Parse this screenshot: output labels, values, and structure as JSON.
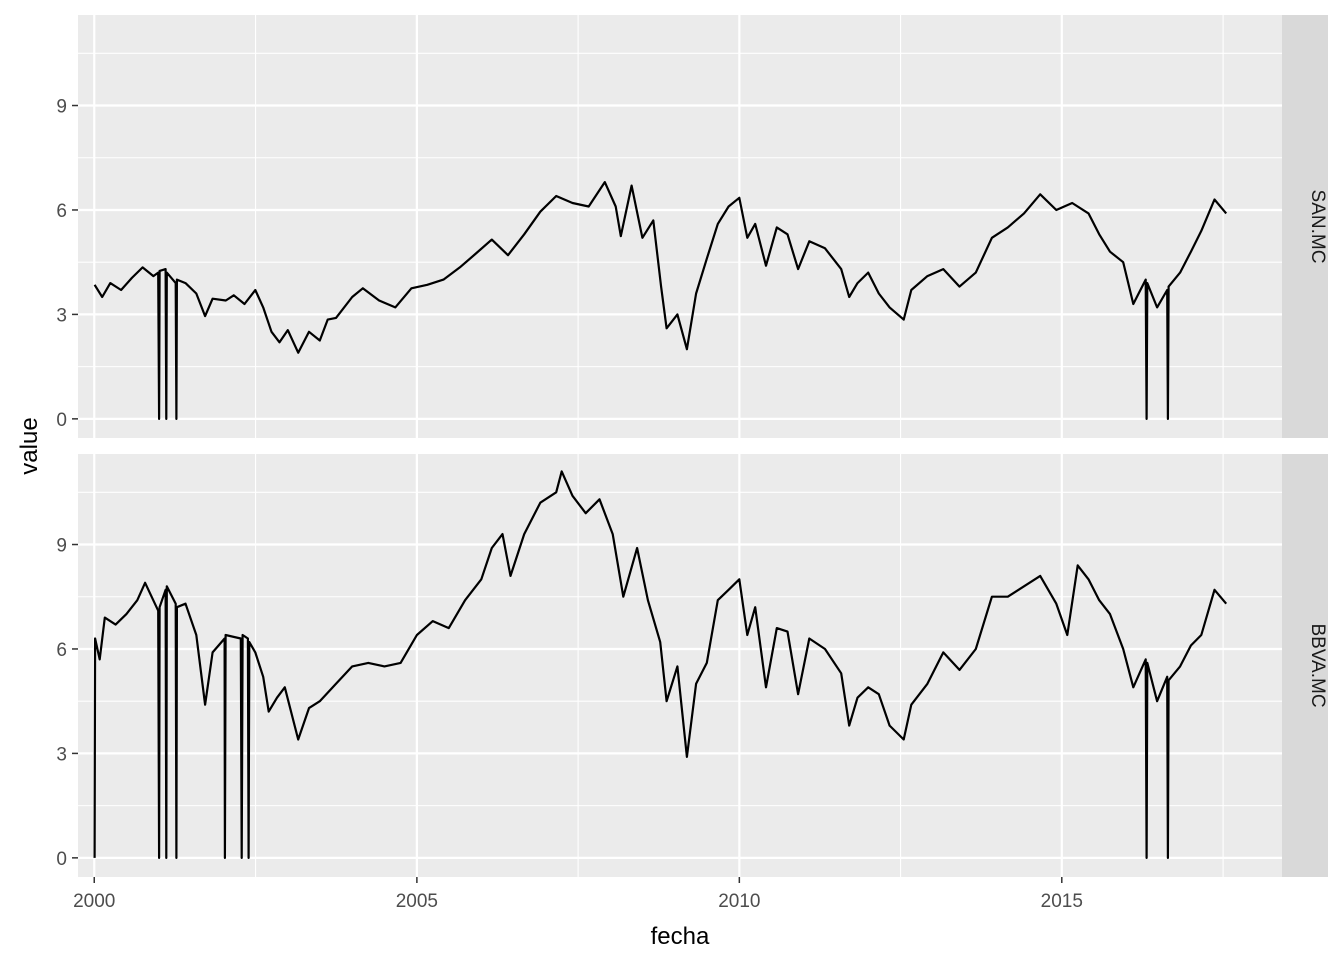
{
  "chart_data": {
    "type": "line",
    "facet_layout": "rows",
    "xlabel": "fecha",
    "ylabel": "value",
    "x_range": [
      "1999-10-01",
      "2018-06-01"
    ],
    "x_ticks": [
      {
        "date": "2000-01-01",
        "label": "2000"
      },
      {
        "date": "2005-01-01",
        "label": "2005"
      },
      {
        "date": "2010-01-01",
        "label": "2010"
      },
      {
        "date": "2015-01-01",
        "label": "2015"
      }
    ],
    "y_range": [
      -0.55,
      11.6
    ],
    "y_ticks": [
      0,
      3,
      6,
      9
    ],
    "grid": true,
    "panel_background": "#ebebeb",
    "strip_background": "#d9d9d9",
    "line_color": "#000000",
    "panels": [
      {
        "strip": "SAN.MC",
        "series": [
          {
            "x": "2000-01-03",
            "y": 3.85
          },
          {
            "x": "2000-02-15",
            "y": 3.5
          },
          {
            "x": "2000-04-01",
            "y": 3.9
          },
          {
            "x": "2000-06-01",
            "y": 3.7
          },
          {
            "x": "2000-08-01",
            "y": 4.05
          },
          {
            "x": "2000-10-01",
            "y": 4.35
          },
          {
            "x": "2000-12-01",
            "y": 4.1
          },
          {
            "x": "2000-12-28",
            "y": 4.2
          },
          {
            "x": "2001-01-02",
            "y": 0
          },
          {
            "x": "2001-01-05",
            "y": 4.25
          },
          {
            "x": "2001-02-08",
            "y": 4.3
          },
          {
            "x": "2001-02-12",
            "y": 0
          },
          {
            "x": "2001-02-15",
            "y": 4.2
          },
          {
            "x": "2001-04-06",
            "y": 3.9
          },
          {
            "x": "2001-04-10",
            "y": 0
          },
          {
            "x": "2001-04-13",
            "y": 4.0
          },
          {
            "x": "2001-06-01",
            "y": 3.9
          },
          {
            "x": "2001-08-01",
            "y": 3.6
          },
          {
            "x": "2001-09-20",
            "y": 2.95
          },
          {
            "x": "2001-11-01",
            "y": 3.45
          },
          {
            "x": "2002-01-15",
            "y": 3.4
          },
          {
            "x": "2002-03-01",
            "y": 3.55
          },
          {
            "x": "2002-05-01",
            "y": 3.3
          },
          {
            "x": "2002-07-01",
            "y": 3.7
          },
          {
            "x": "2002-08-15",
            "y": 3.2
          },
          {
            "x": "2002-10-01",
            "y": 2.5
          },
          {
            "x": "2002-11-15",
            "y": 2.2
          },
          {
            "x": "2003-01-01",
            "y": 2.55
          },
          {
            "x": "2003-03-01",
            "y": 1.9
          },
          {
            "x": "2003-05-01",
            "y": 2.5
          },
          {
            "x": "2003-07-01",
            "y": 2.25
          },
          {
            "x": "2003-08-15",
            "y": 2.85
          },
          {
            "x": "2003-10-01",
            "y": 2.9
          },
          {
            "x": "2004-01-01",
            "y": 3.5
          },
          {
            "x": "2004-03-01",
            "y": 3.75
          },
          {
            "x": "2004-06-01",
            "y": 3.4
          },
          {
            "x": "2004-09-01",
            "y": 3.2
          },
          {
            "x": "2004-12-01",
            "y": 3.75
          },
          {
            "x": "2005-03-01",
            "y": 3.85
          },
          {
            "x": "2005-06-01",
            "y": 4.0
          },
          {
            "x": "2005-09-01",
            "y": 4.35
          },
          {
            "x": "2005-12-01",
            "y": 4.75
          },
          {
            "x": "2006-03-01",
            "y": 5.15
          },
          {
            "x": "2006-06-01",
            "y": 4.7
          },
          {
            "x": "2006-09-01",
            "y": 5.3
          },
          {
            "x": "2006-12-01",
            "y": 5.95
          },
          {
            "x": "2007-03-01",
            "y": 6.4
          },
          {
            "x": "2007-06-01",
            "y": 6.2
          },
          {
            "x": "2007-09-01",
            "y": 6.1
          },
          {
            "x": "2007-12-01",
            "y": 6.8
          },
          {
            "x": "2008-02-01",
            "y": 6.1
          },
          {
            "x": "2008-03-01",
            "y": 5.25
          },
          {
            "x": "2008-05-01",
            "y": 6.7
          },
          {
            "x": "2008-07-01",
            "y": 5.2
          },
          {
            "x": "2008-09-01",
            "y": 5.7
          },
          {
            "x": "2008-10-15",
            "y": 3.8
          },
          {
            "x": "2008-11-15",
            "y": 2.6
          },
          {
            "x": "2009-01-15",
            "y": 3.0
          },
          {
            "x": "2009-03-10",
            "y": 2.0
          },
          {
            "x": "2009-05-01",
            "y": 3.6
          },
          {
            "x": "2009-07-01",
            "y": 4.6
          },
          {
            "x": "2009-09-01",
            "y": 5.6
          },
          {
            "x": "2009-11-01",
            "y": 6.1
          },
          {
            "x": "2010-01-01",
            "y": 6.35
          },
          {
            "x": "2010-02-15",
            "y": 5.2
          },
          {
            "x": "2010-04-01",
            "y": 5.6
          },
          {
            "x": "2010-06-01",
            "y": 4.4
          },
          {
            "x": "2010-08-01",
            "y": 5.5
          },
          {
            "x": "2010-10-01",
            "y": 5.3
          },
          {
            "x": "2010-11-30",
            "y": 4.3
          },
          {
            "x": "2011-02-01",
            "y": 5.1
          },
          {
            "x": "2011-05-01",
            "y": 4.9
          },
          {
            "x": "2011-08-01",
            "y": 4.3
          },
          {
            "x": "2011-09-15",
            "y": 3.5
          },
          {
            "x": "2011-11-01",
            "y": 3.9
          },
          {
            "x": "2012-01-01",
            "y": 4.2
          },
          {
            "x": "2012-03-01",
            "y": 3.6
          },
          {
            "x": "2012-05-01",
            "y": 3.2
          },
          {
            "x": "2012-07-20",
            "y": 2.85
          },
          {
            "x": "2012-09-01",
            "y": 3.7
          },
          {
            "x": "2012-12-01",
            "y": 4.1
          },
          {
            "x": "2013-03-01",
            "y": 4.3
          },
          {
            "x": "2013-06-01",
            "y": 3.8
          },
          {
            "x": "2013-09-01",
            "y": 4.2
          },
          {
            "x": "2013-12-01",
            "y": 5.2
          },
          {
            "x": "2014-03-01",
            "y": 5.5
          },
          {
            "x": "2014-06-01",
            "y": 5.9
          },
          {
            "x": "2014-09-01",
            "y": 6.45
          },
          {
            "x": "2014-12-01",
            "y": 6.0
          },
          {
            "x": "2015-03-01",
            "y": 6.2
          },
          {
            "x": "2015-06-01",
            "y": 5.9
          },
          {
            "x": "2015-08-01",
            "y": 5.3
          },
          {
            "x": "2015-10-01",
            "y": 4.8
          },
          {
            "x": "2015-12-15",
            "y": 4.5
          },
          {
            "x": "2016-02-10",
            "y": 3.3
          },
          {
            "x": "2016-04-20",
            "y": 4.0
          },
          {
            "x": "2016-04-25",
            "y": 0
          },
          {
            "x": "2016-04-29",
            "y": 3.9
          },
          {
            "x": "2016-06-24",
            "y": 3.2
          },
          {
            "x": "2016-08-20",
            "y": 3.7
          },
          {
            "x": "2016-08-24",
            "y": 0
          },
          {
            "x": "2016-08-28",
            "y": 3.8
          },
          {
            "x": "2016-11-01",
            "y": 4.2
          },
          {
            "x": "2017-01-01",
            "y": 4.8
          },
          {
            "x": "2017-03-01",
            "y": 5.4
          },
          {
            "x": "2017-05-15",
            "y": 6.3
          },
          {
            "x": "2017-07-20",
            "y": 5.9
          }
        ]
      },
      {
        "strip": "BBVA.MC",
        "series": [
          {
            "x": "2000-01-03",
            "y": 0
          },
          {
            "x": "2000-01-06",
            "y": 6.3
          },
          {
            "x": "2000-02-01",
            "y": 5.7
          },
          {
            "x": "2000-03-01",
            "y": 6.9
          },
          {
            "x": "2000-05-01",
            "y": 6.7
          },
          {
            "x": "2000-07-01",
            "y": 7.0
          },
          {
            "x": "2000-09-01",
            "y": 7.4
          },
          {
            "x": "2000-10-15",
            "y": 7.9
          },
          {
            "x": "2000-12-28",
            "y": 7.1
          },
          {
            "x": "2001-01-02",
            "y": 0
          },
          {
            "x": "2001-01-05",
            "y": 7.2
          },
          {
            "x": "2001-02-08",
            "y": 7.7
          },
          {
            "x": "2001-02-12",
            "y": 0
          },
          {
            "x": "2001-02-15",
            "y": 7.8
          },
          {
            "x": "2001-04-06",
            "y": 7.3
          },
          {
            "x": "2001-04-10",
            "y": 0
          },
          {
            "x": "2001-04-13",
            "y": 7.2
          },
          {
            "x": "2001-06-01",
            "y": 7.3
          },
          {
            "x": "2001-08-01",
            "y": 6.4
          },
          {
            "x": "2001-09-20",
            "y": 4.4
          },
          {
            "x": "2001-11-01",
            "y": 5.9
          },
          {
            "x": "2002-01-08",
            "y": 6.3
          },
          {
            "x": "2002-01-10",
            "y": 0
          },
          {
            "x": "2002-01-14",
            "y": 6.4
          },
          {
            "x": "2002-04-10",
            "y": 6.3
          },
          {
            "x": "2002-04-15",
            "y": 0
          },
          {
            "x": "2002-04-20",
            "y": 6.4
          },
          {
            "x": "2002-05-20",
            "y": 6.3
          },
          {
            "x": "2002-05-24",
            "y": 0
          },
          {
            "x": "2002-05-28",
            "y": 6.2
          },
          {
            "x": "2002-07-01",
            "y": 5.9
          },
          {
            "x": "2002-08-15",
            "y": 5.2
          },
          {
            "x": "2002-09-15",
            "y": 4.2
          },
          {
            "x": "2002-11-01",
            "y": 4.6
          },
          {
            "x": "2002-12-15",
            "y": 4.9
          },
          {
            "x": "2003-03-01",
            "y": 3.4
          },
          {
            "x": "2003-05-01",
            "y": 4.3
          },
          {
            "x": "2003-07-01",
            "y": 4.5
          },
          {
            "x": "2003-10-01",
            "y": 5.0
          },
          {
            "x": "2004-01-01",
            "y": 5.5
          },
          {
            "x": "2004-04-01",
            "y": 5.6
          },
          {
            "x": "2004-07-01",
            "y": 5.5
          },
          {
            "x": "2004-10-01",
            "y": 5.6
          },
          {
            "x": "2005-01-01",
            "y": 6.4
          },
          {
            "x": "2005-04-01",
            "y": 6.8
          },
          {
            "x": "2005-07-01",
            "y": 6.6
          },
          {
            "x": "2005-10-01",
            "y": 7.4
          },
          {
            "x": "2006-01-01",
            "y": 8.0
          },
          {
            "x": "2006-03-01",
            "y": 8.9
          },
          {
            "x": "2006-05-01",
            "y": 9.3
          },
          {
            "x": "2006-06-15",
            "y": 8.1
          },
          {
            "x": "2006-09-01",
            "y": 9.3
          },
          {
            "x": "2006-12-01",
            "y": 10.2
          },
          {
            "x": "2007-03-01",
            "y": 10.5
          },
          {
            "x": "2007-04-01",
            "y": 11.1
          },
          {
            "x": "2007-06-01",
            "y": 10.4
          },
          {
            "x": "2007-08-15",
            "y": 9.9
          },
          {
            "x": "2007-11-01",
            "y": 10.3
          },
          {
            "x": "2008-01-15",
            "y": 9.3
          },
          {
            "x": "2008-03-15",
            "y": 7.5
          },
          {
            "x": "2008-06-01",
            "y": 8.9
          },
          {
            "x": "2008-08-01",
            "y": 7.4
          },
          {
            "x": "2008-10-10",
            "y": 6.2
          },
          {
            "x": "2008-11-15",
            "y": 4.5
          },
          {
            "x": "2009-01-15",
            "y": 5.5
          },
          {
            "x": "2009-03-10",
            "y": 2.9
          },
          {
            "x": "2009-05-01",
            "y": 5.0
          },
          {
            "x": "2009-07-01",
            "y": 5.6
          },
          {
            "x": "2009-09-01",
            "y": 7.4
          },
          {
            "x": "2009-11-01",
            "y": 7.7
          },
          {
            "x": "2010-01-01",
            "y": 8.0
          },
          {
            "x": "2010-02-15",
            "y": 6.4
          },
          {
            "x": "2010-04-01",
            "y": 7.2
          },
          {
            "x": "2010-06-01",
            "y": 4.9
          },
          {
            "x": "2010-08-01",
            "y": 6.6
          },
          {
            "x": "2010-10-01",
            "y": 6.5
          },
          {
            "x": "2010-11-30",
            "y": 4.7
          },
          {
            "x": "2011-02-01",
            "y": 6.3
          },
          {
            "x": "2011-05-01",
            "y": 6.0
          },
          {
            "x": "2011-08-01",
            "y": 5.3
          },
          {
            "x": "2011-09-15",
            "y": 3.8
          },
          {
            "x": "2011-11-01",
            "y": 4.6
          },
          {
            "x": "2012-01-01",
            "y": 4.9
          },
          {
            "x": "2012-03-01",
            "y": 4.7
          },
          {
            "x": "2012-05-01",
            "y": 3.8
          },
          {
            "x": "2012-07-20",
            "y": 3.4
          },
          {
            "x": "2012-09-01",
            "y": 4.4
          },
          {
            "x": "2012-12-01",
            "y": 5.0
          },
          {
            "x": "2013-03-01",
            "y": 5.9
          },
          {
            "x": "2013-06-01",
            "y": 5.4
          },
          {
            "x": "2013-09-01",
            "y": 6.0
          },
          {
            "x": "2013-12-01",
            "y": 7.5
          },
          {
            "x": "2014-03-01",
            "y": 7.5
          },
          {
            "x": "2014-06-01",
            "y": 7.8
          },
          {
            "x": "2014-09-01",
            "y": 8.1
          },
          {
            "x": "2014-12-01",
            "y": 7.3
          },
          {
            "x": "2015-02-01",
            "y": 6.4
          },
          {
            "x": "2015-04-01",
            "y": 8.4
          },
          {
            "x": "2015-06-01",
            "y": 8.0
          },
          {
            "x": "2015-08-01",
            "y": 7.4
          },
          {
            "x": "2015-10-01",
            "y": 7.0
          },
          {
            "x": "2015-12-15",
            "y": 6.0
          },
          {
            "x": "2016-02-10",
            "y": 4.9
          },
          {
            "x": "2016-04-20",
            "y": 5.7
          },
          {
            "x": "2016-04-25",
            "y": 0
          },
          {
            "x": "2016-04-29",
            "y": 5.6
          },
          {
            "x": "2016-06-24",
            "y": 4.5
          },
          {
            "x": "2016-08-20",
            "y": 5.2
          },
          {
            "x": "2016-08-24",
            "y": 0
          },
          {
            "x": "2016-08-28",
            "y": 5.1
          },
          {
            "x": "2016-11-01",
            "y": 5.5
          },
          {
            "x": "2017-01-01",
            "y": 6.1
          },
          {
            "x": "2017-03-01",
            "y": 6.4
          },
          {
            "x": "2017-05-15",
            "y": 7.7
          },
          {
            "x": "2017-07-20",
            "y": 7.3
          }
        ]
      }
    ]
  }
}
